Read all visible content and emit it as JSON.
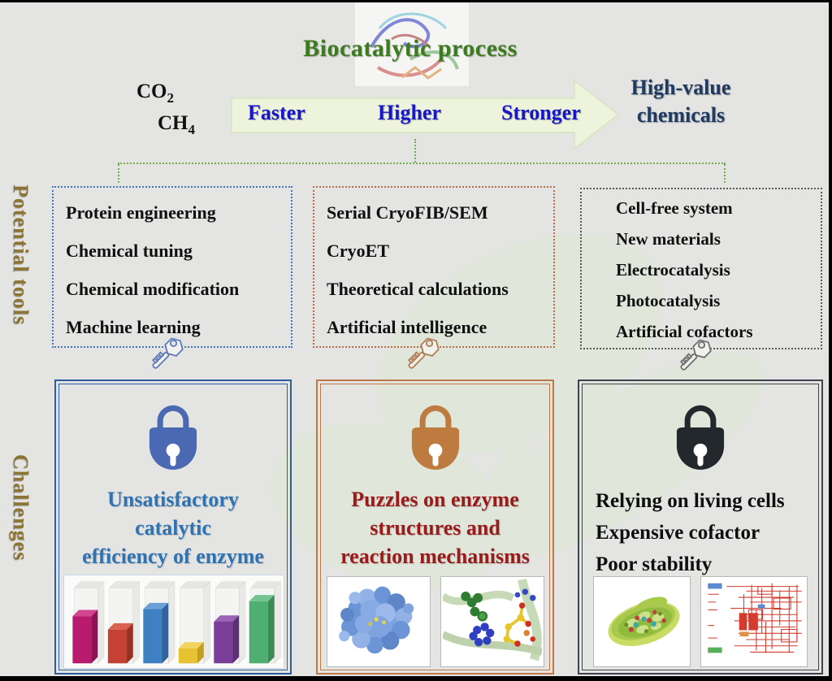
{
  "figure": {
    "title": "Biocatalytic process",
    "inputs": [
      {
        "base": "CO",
        "sub": "2"
      },
      {
        "base": "CH",
        "sub": "4"
      }
    ],
    "arrow_labels": [
      "Faster",
      "Higher",
      "Stronger"
    ],
    "output_lines": [
      "High-value",
      "chemicals"
    ],
    "side_labels": {
      "tools": "Potential tools",
      "challenges": "Challenges"
    }
  },
  "columns": [
    {
      "theme": "blue",
      "accent": "#4472C4",
      "tools": [
        "Protein engineering",
        "Chemical tuning",
        "Chemical modification",
        "Machine learning"
      ],
      "challenge_lines": [
        "Unsatisfactory",
        "catalytic",
        "efficiency of enzyme"
      ],
      "challenge_color": "#2E74B5",
      "media": [
        "bar-chart-image"
      ]
    },
    {
      "theme": "orange",
      "accent": "#C06A45",
      "tools": [
        "Serial CryoFIB/SEM",
        "CryoET",
        "Theoretical calculations",
        "Artificial intelligence"
      ],
      "challenge_lines": [
        "Puzzles on enzyme",
        "structures and",
        "reaction mechanisms"
      ],
      "challenge_color": "#9B1B1B",
      "media": [
        "protein-surface-image",
        "molecule-structure-image"
      ]
    },
    {
      "theme": "dark",
      "accent": "#595959",
      "tools": [
        "Cell-free system",
        "New materials",
        "Electrocatalysis",
        "Photocatalysis",
        "Artificial cofactors"
      ],
      "challenge_lines": [
        "Relying on living cells",
        "Expensive cofactor",
        "Poor stability"
      ],
      "challenge_color": "#0E0E0E",
      "media": [
        "cell-illustration-image",
        "pathway-network-image"
      ]
    }
  ],
  "colors": {
    "background": "#E4E4E2",
    "title_green": "#3D7B21",
    "arrow_fill": "#EDF4DB",
    "arrow_text_blue": "#1717C9",
    "output_navy": "#1F3A63",
    "side_label_olive": "#8C7434",
    "bracket_green": "#6FAE4A",
    "lock_blue": "#4A69B2",
    "lock_orange": "#BE7B3F",
    "lock_black": "#23282C",
    "key_blue": "#5B79B7",
    "key_brown": "#AE7C50",
    "key_gray": "#6E6E6E"
  },
  "chart_data": {
    "type": "bar",
    "title": "",
    "xlabel": "",
    "ylabel": "",
    "note": "decorative 3D bar illustration (no axis labels shown)",
    "values": [
      62,
      45,
      72,
      20,
      55,
      82
    ],
    "ylim": [
      0,
      100
    ],
    "colors": [
      {
        "front": "#B81A6D",
        "top": "#D2458F",
        "side": "#8E1254"
      },
      {
        "front": "#C44133",
        "top": "#D96352",
        "side": "#9C2F23"
      },
      {
        "front": "#3F80C2",
        "top": "#6BA0D6",
        "side": "#2F6399"
      },
      {
        "front": "#E7C232",
        "top": "#F1D45E",
        "side": "#C29F1F"
      },
      {
        "front": "#7B3F99",
        "top": "#9A63B5",
        "side": "#5E2E77"
      },
      {
        "front": "#4FAE71",
        "top": "#74C492",
        "side": "#3B8A57"
      }
    ]
  }
}
